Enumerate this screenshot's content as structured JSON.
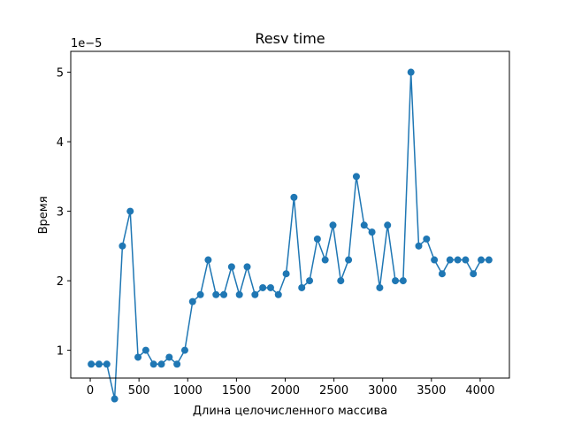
{
  "chart_data": {
    "type": "line",
    "title": "Resv time",
    "xlabel": "Длина целочисленного массива",
    "ylabel": "Время",
    "y_offset_text": "1e−5",
    "xlim": [
      -200,
      4300
    ],
    "ylim": [
      0.6,
      5.3
    ],
    "x_ticks": [
      0,
      500,
      1000,
      1500,
      2000,
      2500,
      3000,
      3500,
      4000
    ],
    "x_tick_labels": [
      "0",
      "500",
      "1000",
      "1500",
      "2000",
      "2500",
      "3000",
      "3500",
      "4000"
    ],
    "y_ticks": [
      1,
      2,
      3,
      4,
      5
    ],
    "y_tick_labels": [
      "1",
      "2",
      "3",
      "4",
      "5"
    ],
    "grid": false,
    "marker": "circle",
    "color": "#1f77b4",
    "series": [
      {
        "x": [
          10,
          90,
          170,
          250,
          330,
          410,
          490,
          570,
          650,
          730,
          810,
          890,
          970,
          1050,
          1130,
          1210,
          1290,
          1370,
          1450,
          1530,
          1610,
          1690,
          1770,
          1850,
          1930,
          2010,
          2090,
          2170,
          2250,
          2330,
          2410,
          2490,
          2570,
          2650,
          2730,
          2810,
          2890,
          2970,
          3050,
          3130,
          3210,
          3290,
          3370,
          3450,
          3530,
          3610,
          3690,
          3770,
          3850,
          3930,
          4010,
          4090
        ],
        "values": [
          0.8,
          0.8,
          0.8,
          0.3,
          2.5,
          3.0,
          0.9,
          1.0,
          0.8,
          0.8,
          0.9,
          0.8,
          1.0,
          1.7,
          1.8,
          2.3,
          1.8,
          1.8,
          2.2,
          1.8,
          2.2,
          1.8,
          1.9,
          1.9,
          1.8,
          2.1,
          3.2,
          1.9,
          2.0,
          2.6,
          2.3,
          2.8,
          2.0,
          2.3,
          3.5,
          2.8,
          2.7,
          1.9,
          2.8,
          2.0,
          2.0,
          5.0,
          2.5,
          2.6,
          2.3,
          2.1,
          2.3,
          2.3,
          2.3,
          2.1,
          2.3,
          2.3
        ]
      }
    ]
  }
}
